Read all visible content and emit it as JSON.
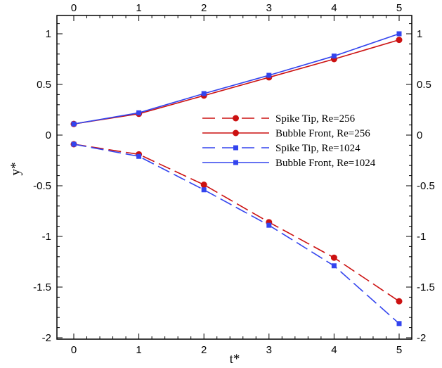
{
  "chart_data": {
    "type": "line",
    "xlabel": "t*",
    "ylabel": "y*",
    "xlim": [
      0,
      5
    ],
    "ylim": [
      -2,
      1.2
    ],
    "x_ticks": [
      0,
      1,
      2,
      3,
      4,
      5
    ],
    "x_tick_labels": [
      "0",
      "1",
      "2",
      "3",
      "4",
      "5"
    ],
    "y_ticks": [
      -2,
      -1.5,
      -1,
      -0.5,
      0,
      0.5,
      1
    ],
    "y_tick_labels": [
      "-2",
      "-1.5",
      "-1",
      "-0.5",
      "0",
      "0.5",
      "1"
    ],
    "y_tick_labels_right": [
      "-2",
      "-1.5",
      "-1",
      "-0.5",
      "0",
      "0.5",
      "1"
    ],
    "grid": false,
    "legend_position": "center-right",
    "x": [
      0,
      1,
      2,
      3,
      4,
      5
    ],
    "series": [
      {
        "name": "Spike Tip, Re=256",
        "values": [
          -0.09,
          -0.19,
          -0.49,
          -0.86,
          -1.21,
          -1.64
        ],
        "color": "#cc1111",
        "line": "dashed",
        "marker": "circle"
      },
      {
        "name": "Bubble Front, Re=256",
        "values": [
          0.11,
          0.21,
          0.39,
          0.57,
          0.75,
          0.94
        ],
        "color": "#cc1111",
        "line": "solid",
        "marker": "circle"
      },
      {
        "name": "Spike Tip, Re=1024",
        "values": [
          -0.09,
          -0.21,
          -0.54,
          -0.89,
          -1.29,
          -1.86
        ],
        "color": "#3344ee",
        "line": "dashed",
        "marker": "square"
      },
      {
        "name": "Bubble Front, Re=1024",
        "values": [
          0.11,
          0.22,
          0.41,
          0.59,
          0.78,
          1.0
        ],
        "color": "#3344ee",
        "line": "solid",
        "marker": "square"
      }
    ]
  }
}
